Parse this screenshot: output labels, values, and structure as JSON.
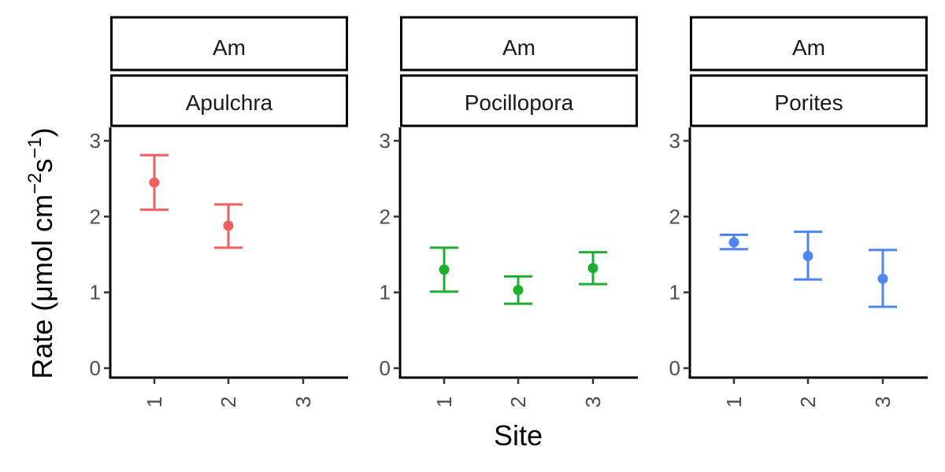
{
  "chart_data": {
    "type": "scatter",
    "xlabel": "Site",
    "ylabel": {
      "prefix": "Rate (",
      "mu": "μ",
      "unit1": "mol cm",
      "exp1": "−2",
      "unit2": "s",
      "exp2": "−1",
      "suffix": ")"
    },
    "ylim": [
      0,
      3
    ],
    "yticks": [
      0,
      1,
      2,
      3
    ],
    "xticks": [
      "1",
      "2",
      "3"
    ],
    "grid": false,
    "legend": "none",
    "panels": [
      {
        "strip_top": "Am",
        "strip_bottom": "Apulchra",
        "color": "#F15F5F",
        "points": [
          {
            "site": "1",
            "mean": 2.45,
            "lower": 2.09,
            "upper": 2.81
          },
          {
            "site": "2",
            "mean": 1.88,
            "lower": 1.59,
            "upper": 2.16
          }
        ]
      },
      {
        "strip_top": "Am",
        "strip_bottom": "Pocillopora",
        "color": "#1EAE30",
        "points": [
          {
            "site": "1",
            "mean": 1.3,
            "lower": 1.01,
            "upper": 1.59
          },
          {
            "site": "2",
            "mean": 1.03,
            "lower": 0.85,
            "upper": 1.21
          },
          {
            "site": "3",
            "mean": 1.32,
            "lower": 1.11,
            "upper": 1.53
          }
        ]
      },
      {
        "strip_top": "Am",
        "strip_bottom": "Porites",
        "color": "#4E87F0",
        "points": [
          {
            "site": "1",
            "mean": 1.66,
            "lower": 1.57,
            "upper": 1.76
          },
          {
            "site": "2",
            "mean": 1.48,
            "lower": 1.17,
            "upper": 1.8
          },
          {
            "site": "3",
            "mean": 1.18,
            "lower": 0.81,
            "upper": 1.56
          }
        ]
      }
    ]
  }
}
